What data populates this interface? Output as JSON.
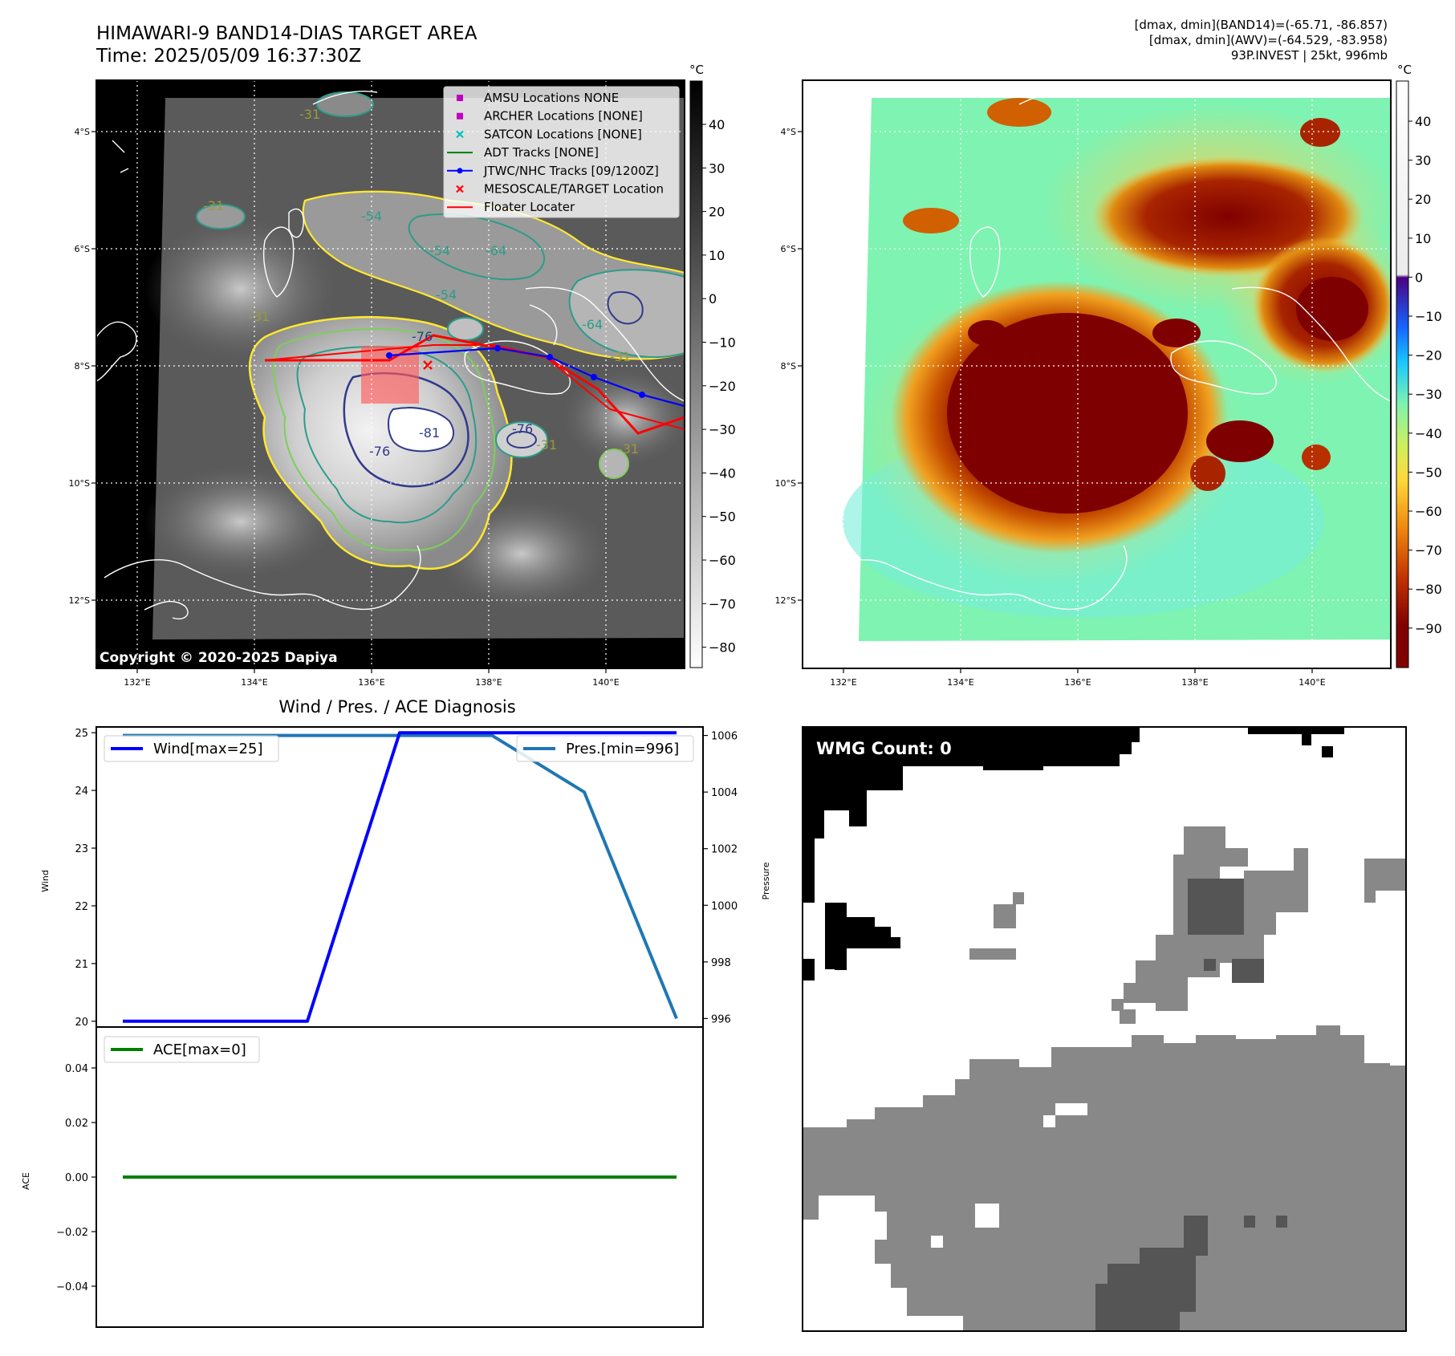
{
  "header": {
    "title_line1": "HIMAWARI-9 BAND14-DIAS TARGET AREA",
    "title_line2": "Time: 2025/05/09 16:37:30Z",
    "stats_line1": "[dmax, dmin](BAND14)=(-65.71, -86.857)",
    "stats_line2": "[dmax, dmin](AWV)=(-64.529, -83.958)",
    "stats_line3": "93P.INVEST | 25kt, 996mb"
  },
  "map_axes": {
    "lon_ticks": [
      "132°E",
      "134°E",
      "136°E",
      "138°E",
      "140°E"
    ],
    "lat_ticks": [
      "4°S",
      "6°S",
      "8°S",
      "10°S",
      "12°S"
    ],
    "copyright": "Copyright © 2020-2025 Dapiya"
  },
  "colorbar_left": {
    "unit": "°C",
    "ticks": [
      "40",
      "30",
      "20",
      "10",
      "0",
      "−10",
      "−20",
      "−30",
      "−40",
      "−50",
      "−60",
      "−70",
      "−80"
    ]
  },
  "colorbar_right": {
    "unit": "°C",
    "ticks": [
      "40",
      "30",
      "20",
      "10",
      "0",
      "−10",
      "−20",
      "−30",
      "−40",
      "−50",
      "−60",
      "−70",
      "−80",
      "−90"
    ]
  },
  "contour_labels": [
    "-31",
    "-31",
    "-54",
    "-64",
    "-54",
    "-54",
    "-31",
    "-64",
    "-31",
    "-76",
    "-81",
    "-76",
    "-76",
    "-31",
    "-31"
  ],
  "legend": {
    "items": [
      {
        "label": "AMSU Locations NONE",
        "color": "#c000c0",
        "marker": "square"
      },
      {
        "label": "ARCHER Locations [NONE]",
        "color": "#c000c0",
        "marker": "square"
      },
      {
        "label": "SATCON Locations [NONE]",
        "color": "#00bfbf",
        "marker": "x"
      },
      {
        "label": "ADT Tracks [NONE]",
        "color": "#008000",
        "marker": "line"
      },
      {
        "label": "JTWC/NHC Tracks [09/1200Z]",
        "color": "#0000ff",
        "marker": "line-dot"
      },
      {
        "label": "MESOSCALE/TARGET Location",
        "color": "#ff0000",
        "marker": "x"
      },
      {
        "label": "Floater Locater",
        "color": "#ff0000",
        "marker": "line"
      }
    ]
  },
  "wmg": {
    "label": "WMG Count: 0"
  },
  "chart_data": [
    {
      "type": "line",
      "title": "Wind / Pres. / ACE Diagnosis",
      "ylabel": "Wind",
      "ylabel_right": "Pressure",
      "ylim": [
        19.9,
        25.1
      ],
      "ylim_right": [
        995.7,
        1006.3
      ],
      "yticks": [
        "20",
        "21",
        "22",
        "23",
        "24",
        "25"
      ],
      "yticks_right": [
        "996",
        "998",
        "1000",
        "1002",
        "1004",
        "1006"
      ],
      "x": [
        0,
        1,
        2,
        3,
        4,
        5,
        6
      ],
      "series": [
        {
          "name": "Wind[max=25]",
          "axis": "left",
          "color": "#0000ff",
          "values": [
            20,
            20,
            20,
            25,
            25,
            25,
            25
          ]
        },
        {
          "name": "Pres.[min=996]",
          "axis": "right",
          "color": "#1f77b4",
          "values": [
            1006,
            1006,
            1006,
            1006,
            1006,
            1004,
            996
          ]
        }
      ]
    },
    {
      "type": "line",
      "ylabel": "ACE",
      "ylim": [
        -0.055,
        0.055
      ],
      "yticks": [
        "0.04",
        "0.02",
        "0.00",
        "−0.02",
        "−0.04"
      ],
      "x": [
        0,
        1,
        2,
        3,
        4,
        5,
        6
      ],
      "series": [
        {
          "name": "ACE[max=0]",
          "color": "#008000",
          "values": [
            0,
            0,
            0,
            0,
            0,
            0,
            0
          ]
        }
      ]
    }
  ]
}
